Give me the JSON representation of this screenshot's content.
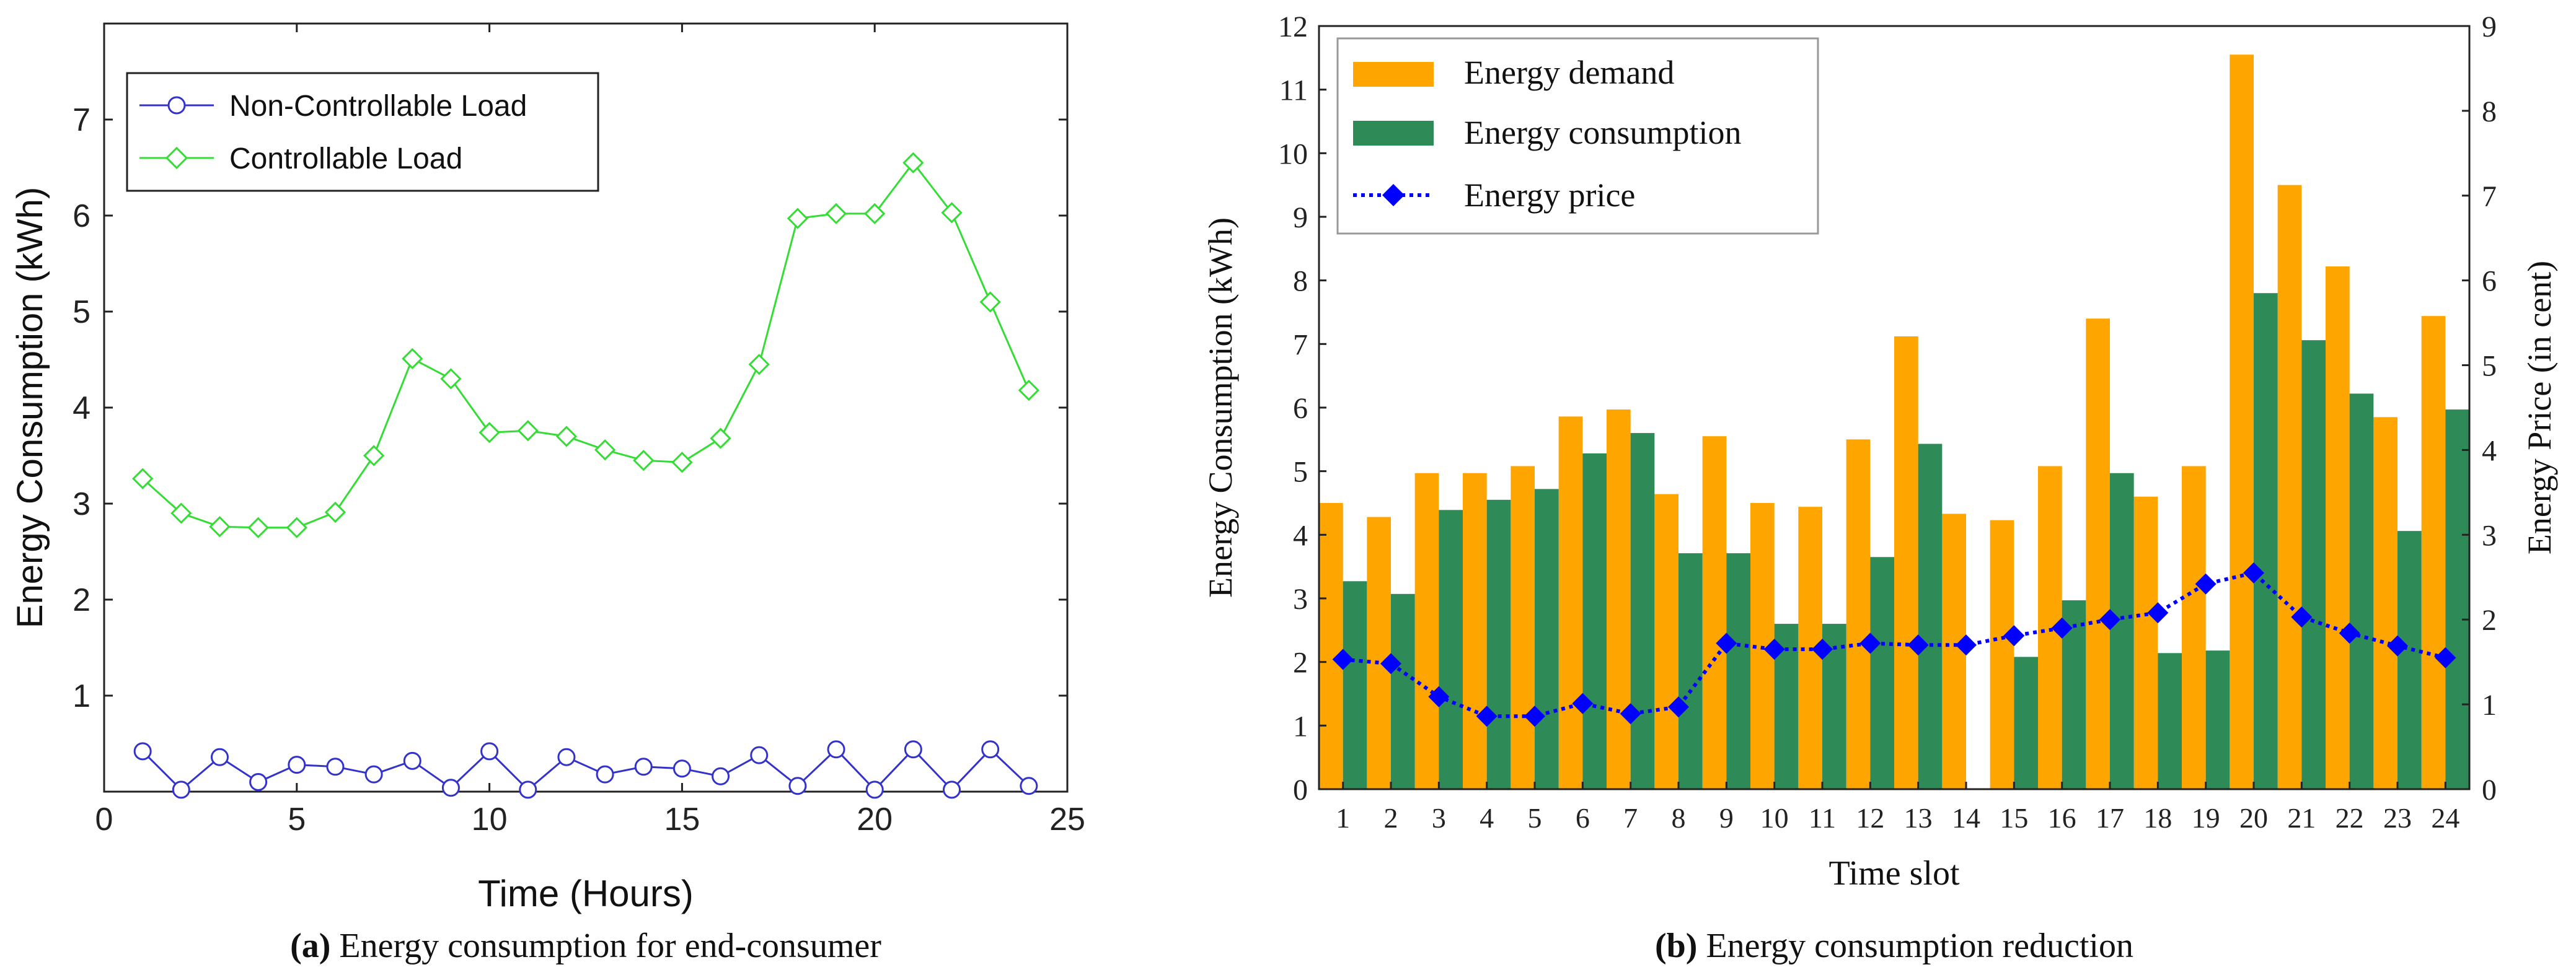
{
  "chart_data": [
    {
      "type": "line",
      "caption_tag": "(a)",
      "caption_text": "Energy consumption for end-consumer",
      "xlabel": "Time (Hours)",
      "ylabel": "Energy Consumption (kWh)",
      "xlim": [
        0,
        25
      ],
      "ylim": [
        0,
        8
      ],
      "xticks": [
        0,
        5,
        10,
        15,
        20,
        25
      ],
      "yticks": [
        1,
        2,
        3,
        4,
        5,
        6,
        7
      ],
      "x": [
        1,
        2,
        3,
        4,
        5,
        6,
        7,
        8,
        9,
        10,
        11,
        12,
        13,
        14,
        15,
        16,
        17,
        18,
        19,
        20,
        21,
        22,
        23,
        24
      ],
      "legend_position": "top-left",
      "series": [
        {
          "name": "Non-Controllable Load",
          "color": "#3333cc",
          "marker": "circle",
          "values": [
            0.42,
            0.02,
            0.36,
            0.1,
            0.28,
            0.26,
            0.18,
            0.32,
            0.04,
            0.42,
            0.02,
            0.36,
            0.18,
            0.26,
            0.24,
            0.16,
            0.38,
            0.06,
            0.44,
            0.02,
            0.44,
            0.02,
            0.44,
            0.06
          ]
        },
        {
          "name": "Controllable Load",
          "color": "#33dd33",
          "marker": "diamond",
          "values": [
            3.26,
            2.9,
            2.76,
            2.75,
            2.75,
            2.91,
            3.5,
            4.51,
            4.3,
            3.74,
            3.76,
            3.7,
            3.56,
            3.45,
            3.43,
            3.68,
            4.45,
            5.97,
            6.02,
            6.02,
            6.55,
            6.03,
            5.1,
            4.18
          ]
        }
      ]
    },
    {
      "type": "bar",
      "caption_tag": "(b)",
      "caption_text": "Energy consumption reduction",
      "xlabel": "Time slot",
      "ylabel": "Energy Consumption (kWh)",
      "ylabel_right": "Energy Price (in cent)",
      "categories": [
        "1",
        "2",
        "3",
        "4",
        "5",
        "6",
        "7",
        "8",
        "9",
        "10",
        "11",
        "12",
        "13",
        "14",
        "15",
        "16",
        "17",
        "18",
        "19",
        "20",
        "21",
        "22",
        "23",
        "24"
      ],
      "ylim": [
        0,
        12
      ],
      "ylim_right": [
        0,
        9
      ],
      "yticks": [
        0,
        1,
        2,
        3,
        4,
        5,
        6,
        7,
        8,
        9,
        10,
        11,
        12
      ],
      "yticks_right": [
        0,
        1,
        2,
        3,
        4,
        5,
        6,
        7,
        8,
        9
      ],
      "legend_position": "top-left",
      "series": [
        {
          "name": "Energy demand",
          "color": "#ffa500",
          "values": [
            4.5,
            4.28,
            4.97,
            4.97,
            5.08,
            5.86,
            5.97,
            4.64,
            5.55,
            4.5,
            4.44,
            5.5,
            7.12,
            4.33,
            4.23,
            5.08,
            7.4,
            4.6,
            5.08,
            11.55,
            9.5,
            8.22,
            5.85,
            7.44
          ]
        },
        {
          "name": "Energy consumption",
          "color": "#2e8b57",
          "values": [
            3.27,
            3.07,
            4.39,
            4.55,
            4.72,
            5.28,
            5.6,
            3.71,
            3.71,
            2.6,
            2.6,
            3.65,
            5.43,
            0,
            2.08,
            2.97,
            4.97,
            2.14,
            2.18,
            7.8,
            7.06,
            6.22,
            4.06,
            5.97
          ]
        },
        {
          "name": "Energy price",
          "color": "#0000ff",
          "axis": "right",
          "marker": "diamond",
          "values": [
            1.53,
            1.48,
            1.09,
            0.86,
            0.86,
            1.01,
            0.89,
            0.97,
            1.72,
            1.65,
            1.65,
            1.72,
            1.7,
            1.7,
            1.81,
            1.9,
            2.0,
            2.08,
            2.42,
            2.55,
            2.03,
            1.84,
            1.69,
            1.55
          ]
        }
      ]
    }
  ]
}
